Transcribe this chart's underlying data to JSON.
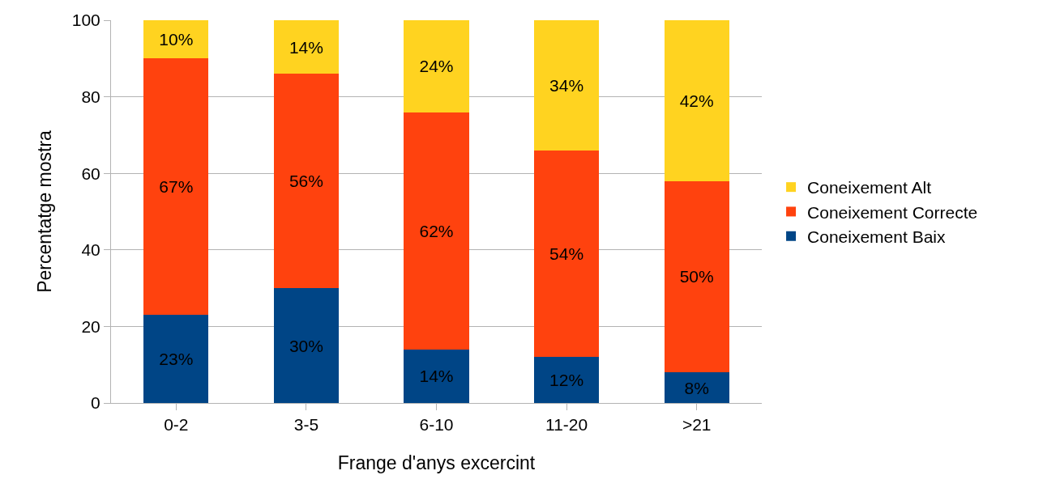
{
  "chart_data": {
    "type": "bar",
    "stacked": true,
    "xlabel": "Frange d'anys excercint",
    "ylabel": "Percentatge mostra",
    "categories": [
      "0-2",
      "3-5",
      "6-10",
      "11-20",
      ">21"
    ],
    "series": [
      {
        "name": "Coneixement Baix",
        "color": "#004586",
        "values": [
          23,
          30,
          14,
          12,
          8
        ],
        "value_labels": [
          "23%",
          "30%",
          "14%",
          "12%",
          "8%"
        ]
      },
      {
        "name": "Coneixement Correcte",
        "color": "#ff420e",
        "values": [
          67,
          56,
          62,
          54,
          50
        ],
        "value_labels": [
          "67%",
          "56%",
          "62%",
          "54%",
          "50%"
        ]
      },
      {
        "name": "Coneixement Alt",
        "color": "#ffd320",
        "values": [
          10,
          14,
          24,
          34,
          42
        ],
        "value_labels": [
          "10%",
          "14%",
          "24%",
          "34%",
          "42%"
        ]
      }
    ],
    "ylim": [
      0,
      100
    ],
    "yticks": [
      0,
      20,
      40,
      60,
      80,
      100
    ],
    "grid": "y",
    "legend": "right"
  }
}
